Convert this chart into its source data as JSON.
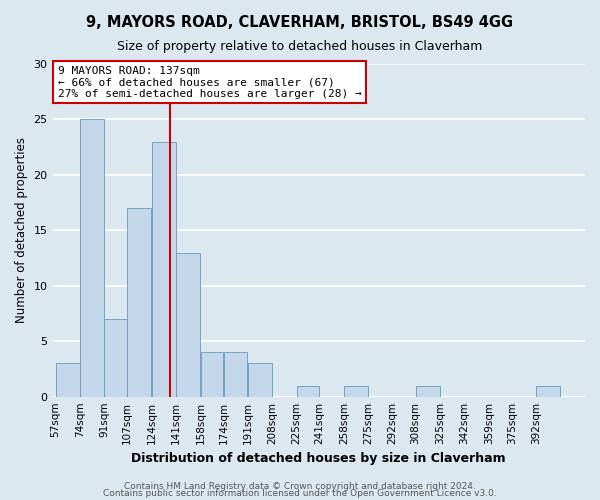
{
  "title": "9, MAYORS ROAD, CLAVERHAM, BRISTOL, BS49 4GG",
  "subtitle": "Size of property relative to detached houses in Claverham",
  "xlabel": "Distribution of detached houses by size in Claverham",
  "ylabel": "Number of detached properties",
  "bar_color": "#c5d8eb",
  "bar_edge_color": "#6699bb",
  "bin_labels": [
    "57sqm",
    "74sqm",
    "91sqm",
    "107sqm",
    "124sqm",
    "141sqm",
    "158sqm",
    "174sqm",
    "191sqm",
    "208sqm",
    "225sqm",
    "241sqm",
    "258sqm",
    "275sqm",
    "292sqm",
    "308sqm",
    "325sqm",
    "342sqm",
    "359sqm",
    "375sqm",
    "392sqm"
  ],
  "bar_values": [
    3,
    25,
    7,
    17,
    23,
    13,
    4,
    4,
    3,
    0,
    1,
    0,
    1,
    0,
    0,
    1,
    0,
    0,
    0,
    0,
    1
  ],
  "bin_edges": [
    57,
    74,
    91,
    107,
    124,
    141,
    158,
    174,
    191,
    208,
    225,
    241,
    258,
    275,
    292,
    308,
    325,
    342,
    359,
    375,
    392,
    409
  ],
  "vline_x": 137,
  "vline_color": "#cc0000",
  "ylim": [
    0,
    30
  ],
  "yticks": [
    0,
    5,
    10,
    15,
    20,
    25,
    30
  ],
  "annotation_text": "9 MAYORS ROAD: 137sqm\n← 66% of detached houses are smaller (67)\n27% of semi-detached houses are larger (28) →",
  "annotation_box_color": "#ffffff",
  "annotation_box_edge": "#cc0000",
  "footer1": "Contains HM Land Registry data © Crown copyright and database right 2024.",
  "footer2": "Contains public sector information licensed under the Open Government Licence v3.0.",
  "bg_color": "#dce8f0",
  "plot_bg_color": "#dce8f0",
  "grid_color": "#ffffff",
  "figsize": [
    6.0,
    5.0
  ],
  "dpi": 100
}
